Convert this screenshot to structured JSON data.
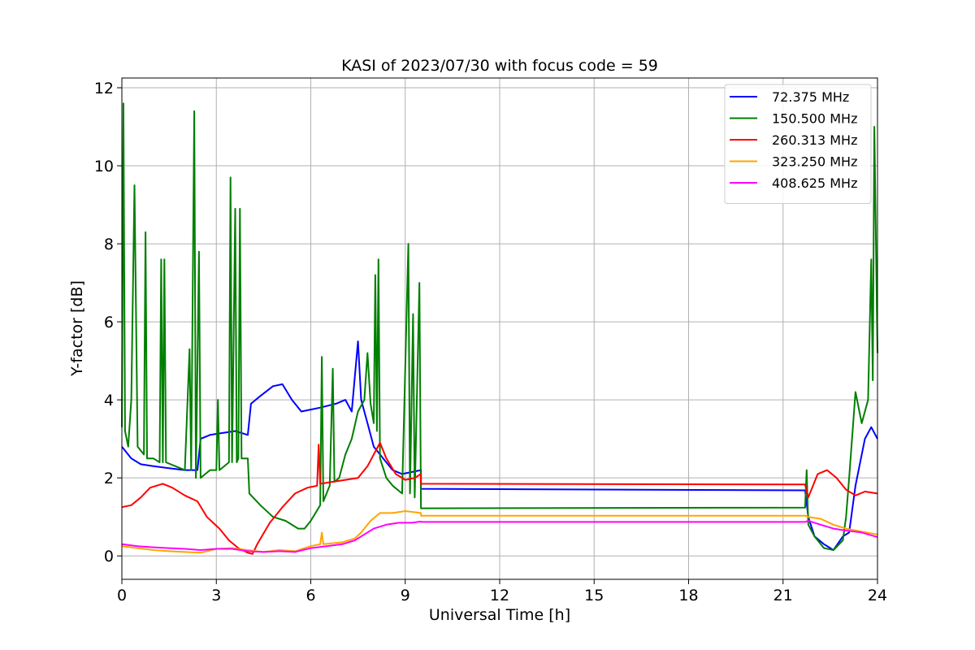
{
  "chart_data": {
    "type": "line",
    "title": "KASI of 2023/07/30 with focus code = 59",
    "xlabel": "Universal Time [h]",
    "ylabel": "Y-factor [dB]",
    "xlim": [
      0,
      24
    ],
    "ylim": [
      -0.6,
      12.25
    ],
    "xticks": [
      0,
      3,
      6,
      9,
      12,
      15,
      18,
      21,
      24
    ],
    "yticks": [
      0,
      2,
      4,
      6,
      8,
      10,
      12
    ],
    "grid": true,
    "legend_position": "top-right",
    "series": [
      {
        "name": "  72.375 MHz",
        "color": "#0000ff",
        "points": [
          [
            0,
            2.8
          ],
          [
            0.3,
            2.5
          ],
          [
            0.6,
            2.35
          ],
          [
            1.0,
            2.3
          ],
          [
            1.5,
            2.25
          ],
          [
            2.0,
            2.2
          ],
          [
            2.4,
            2.2
          ],
          [
            2.5,
            3.0
          ],
          [
            2.8,
            3.1
          ],
          [
            3.2,
            3.15
          ],
          [
            3.6,
            3.2
          ],
          [
            4.0,
            3.1
          ],
          [
            4.1,
            3.9
          ],
          [
            4.4,
            4.1
          ],
          [
            4.8,
            4.35
          ],
          [
            5.1,
            4.4
          ],
          [
            5.4,
            4.0
          ],
          [
            5.7,
            3.7
          ],
          [
            6.0,
            3.75
          ],
          [
            6.3,
            3.8
          ],
          [
            6.8,
            3.9
          ],
          [
            7.1,
            4.0
          ],
          [
            7.3,
            3.7
          ],
          [
            7.5,
            5.5
          ],
          [
            7.6,
            4.0
          ],
          [
            7.8,
            3.4
          ],
          [
            8.0,
            2.8
          ],
          [
            8.3,
            2.5
          ],
          [
            8.6,
            2.2
          ],
          [
            8.9,
            2.1
          ],
          [
            9.2,
            2.15
          ],
          [
            9.5,
            2.2
          ],
          [
            9.5,
            1.72
          ],
          [
            21.7,
            1.68
          ],
          [
            21.8,
            1.0
          ],
          [
            22.0,
            0.5
          ],
          [
            22.3,
            0.3
          ],
          [
            22.6,
            0.15
          ],
          [
            22.9,
            0.5
          ],
          [
            23.1,
            0.6
          ],
          [
            23.3,
            1.8
          ],
          [
            23.6,
            3.0
          ],
          [
            23.8,
            3.3
          ],
          [
            24.0,
            3.0
          ]
        ]
      },
      {
        "name": "150.500 MHz",
        "color": "#007f00",
        "points": [
          [
            0,
            3.3
          ],
          [
            0.05,
            11.6
          ],
          [
            0.1,
            3.2
          ],
          [
            0.2,
            2.8
          ],
          [
            0.3,
            4.0
          ],
          [
            0.4,
            9.5
          ],
          [
            0.5,
            2.8
          ],
          [
            0.7,
            2.6
          ],
          [
            0.75,
            8.3
          ],
          [
            0.8,
            2.5
          ],
          [
            1.0,
            2.5
          ],
          [
            1.2,
            2.4
          ],
          [
            1.25,
            7.6
          ],
          [
            1.3,
            2.4
          ],
          [
            1.35,
            7.6
          ],
          [
            1.4,
            2.4
          ],
          [
            1.7,
            2.3
          ],
          [
            2.0,
            2.2
          ],
          [
            2.15,
            5.3
          ],
          [
            2.2,
            2.2
          ],
          [
            2.3,
            11.4
          ],
          [
            2.35,
            2.0
          ],
          [
            2.45,
            7.8
          ],
          [
            2.5,
            2.0
          ],
          [
            2.8,
            2.2
          ],
          [
            3.0,
            2.2
          ],
          [
            3.05,
            4.0
          ],
          [
            3.1,
            2.2
          ],
          [
            3.4,
            2.4
          ],
          [
            3.45,
            9.7
          ],
          [
            3.5,
            2.4
          ],
          [
            3.6,
            8.9
          ],
          [
            3.65,
            2.4
          ],
          [
            3.7,
            2.5
          ],
          [
            3.75,
            8.9
          ],
          [
            3.8,
            2.5
          ],
          [
            4.0,
            2.5
          ],
          [
            4.05,
            1.6
          ],
          [
            4.4,
            1.3
          ],
          [
            4.8,
            1.0
          ],
          [
            5.2,
            0.9
          ],
          [
            5.6,
            0.7
          ],
          [
            5.8,
            0.7
          ],
          [
            6.0,
            0.9
          ],
          [
            6.3,
            1.3
          ],
          [
            6.35,
            5.1
          ],
          [
            6.4,
            1.4
          ],
          [
            6.6,
            1.8
          ],
          [
            6.7,
            4.8
          ],
          [
            6.75,
            1.9
          ],
          [
            6.9,
            2.0
          ],
          [
            7.1,
            2.6
          ],
          [
            7.3,
            3.0
          ],
          [
            7.5,
            3.7
          ],
          [
            7.7,
            4.0
          ],
          [
            7.8,
            5.2
          ],
          [
            7.9,
            3.9
          ],
          [
            8.0,
            3.4
          ],
          [
            8.05,
            7.2
          ],
          [
            8.1,
            3.2
          ],
          [
            8.15,
            7.6
          ],
          [
            8.2,
            2.5
          ],
          [
            8.4,
            2.0
          ],
          [
            8.6,
            1.8
          ],
          [
            8.9,
            1.6
          ],
          [
            9.1,
            8.0
          ],
          [
            9.15,
            1.6
          ],
          [
            9.25,
            6.2
          ],
          [
            9.3,
            1.5
          ],
          [
            9.45,
            7.0
          ],
          [
            9.5,
            1.3
          ],
          [
            9.5,
            1.22
          ],
          [
            21.7,
            1.24
          ],
          [
            21.75,
            2.2
          ],
          [
            21.8,
            0.8
          ],
          [
            22.0,
            0.5
          ],
          [
            22.3,
            0.2
          ],
          [
            22.6,
            0.15
          ],
          [
            22.9,
            0.4
          ],
          [
            23.0,
            1.0
          ],
          [
            23.1,
            2.0
          ],
          [
            23.3,
            4.2
          ],
          [
            23.5,
            3.4
          ],
          [
            23.7,
            4.0
          ],
          [
            23.8,
            7.6
          ],
          [
            23.85,
            4.5
          ],
          [
            23.9,
            11.0
          ],
          [
            24.0,
            5.2
          ]
        ]
      },
      {
        "name": "260.313 MHz",
        "color": "#ff0000",
        "points": [
          [
            0,
            1.25
          ],
          [
            0.3,
            1.3
          ],
          [
            0.6,
            1.5
          ],
          [
            0.9,
            1.75
          ],
          [
            1.3,
            1.85
          ],
          [
            1.6,
            1.75
          ],
          [
            2.0,
            1.55
          ],
          [
            2.4,
            1.4
          ],
          [
            2.7,
            1.0
          ],
          [
            3.1,
            0.7
          ],
          [
            3.4,
            0.4
          ],
          [
            3.7,
            0.2
          ],
          [
            4.0,
            0.08
          ],
          [
            4.15,
            0.05
          ],
          [
            4.3,
            0.3
          ],
          [
            4.7,
            0.85
          ],
          [
            5.1,
            1.25
          ],
          [
            5.5,
            1.6
          ],
          [
            5.9,
            1.75
          ],
          [
            6.2,
            1.8
          ],
          [
            6.25,
            2.85
          ],
          [
            6.3,
            1.85
          ],
          [
            6.7,
            1.9
          ],
          [
            7.1,
            1.95
          ],
          [
            7.5,
            2.0
          ],
          [
            7.8,
            2.3
          ],
          [
            8.0,
            2.6
          ],
          [
            8.2,
            2.9
          ],
          [
            8.4,
            2.5
          ],
          [
            8.7,
            2.1
          ],
          [
            9.0,
            1.95
          ],
          [
            9.3,
            2.0
          ],
          [
            9.5,
            2.1
          ],
          [
            9.5,
            1.85
          ],
          [
            21.7,
            1.83
          ],
          [
            21.8,
            1.5
          ],
          [
            22.1,
            2.1
          ],
          [
            22.4,
            2.2
          ],
          [
            22.7,
            2.0
          ],
          [
            23.0,
            1.7
          ],
          [
            23.3,
            1.55
          ],
          [
            23.6,
            1.65
          ],
          [
            24.0,
            1.6
          ]
        ]
      },
      {
        "name": "323.250 MHz",
        "color": "#ffa500",
        "points": [
          [
            0,
            0.25
          ],
          [
            0.5,
            0.2
          ],
          [
            1.0,
            0.15
          ],
          [
            1.5,
            0.12
          ],
          [
            2.0,
            0.1
          ],
          [
            2.5,
            0.08
          ],
          [
            3.0,
            0.18
          ],
          [
            3.5,
            0.2
          ],
          [
            4.0,
            0.15
          ],
          [
            4.5,
            0.1
          ],
          [
            5.0,
            0.15
          ],
          [
            5.5,
            0.12
          ],
          [
            6.0,
            0.25
          ],
          [
            6.3,
            0.3
          ],
          [
            6.35,
            0.6
          ],
          [
            6.4,
            0.3
          ],
          [
            7.0,
            0.35
          ],
          [
            7.4,
            0.45
          ],
          [
            7.6,
            0.6
          ],
          [
            7.9,
            0.9
          ],
          [
            8.2,
            1.1
          ],
          [
            8.6,
            1.1
          ],
          [
            9.0,
            1.15
          ],
          [
            9.5,
            1.1
          ],
          [
            9.5,
            1.03
          ],
          [
            21.7,
            1.03
          ],
          [
            21.8,
            1.0
          ],
          [
            22.2,
            0.95
          ],
          [
            22.6,
            0.8
          ],
          [
            23.0,
            0.7
          ],
          [
            23.5,
            0.62
          ],
          [
            24.0,
            0.55
          ]
        ]
      },
      {
        "name": "408.625 MHz",
        "color": "#ff00ff",
        "points": [
          [
            0,
            0.3
          ],
          [
            0.5,
            0.25
          ],
          [
            1.0,
            0.22
          ],
          [
            1.5,
            0.2
          ],
          [
            2.0,
            0.18
          ],
          [
            2.5,
            0.15
          ],
          [
            3.0,
            0.18
          ],
          [
            3.5,
            0.18
          ],
          [
            4.0,
            0.12
          ],
          [
            4.5,
            0.1
          ],
          [
            5.0,
            0.12
          ],
          [
            5.5,
            0.1
          ],
          [
            6.0,
            0.2
          ],
          [
            6.5,
            0.25
          ],
          [
            7.0,
            0.3
          ],
          [
            7.4,
            0.4
          ],
          [
            7.7,
            0.55
          ],
          [
            8.0,
            0.7
          ],
          [
            8.4,
            0.8
          ],
          [
            8.8,
            0.85
          ],
          [
            9.2,
            0.85
          ],
          [
            9.5,
            0.88
          ],
          [
            9.5,
            0.87
          ],
          [
            21.7,
            0.87
          ],
          [
            21.8,
            0.9
          ],
          [
            22.2,
            0.8
          ],
          [
            22.6,
            0.7
          ],
          [
            23.0,
            0.65
          ],
          [
            23.5,
            0.6
          ],
          [
            24.0,
            0.48
          ]
        ]
      }
    ]
  }
}
